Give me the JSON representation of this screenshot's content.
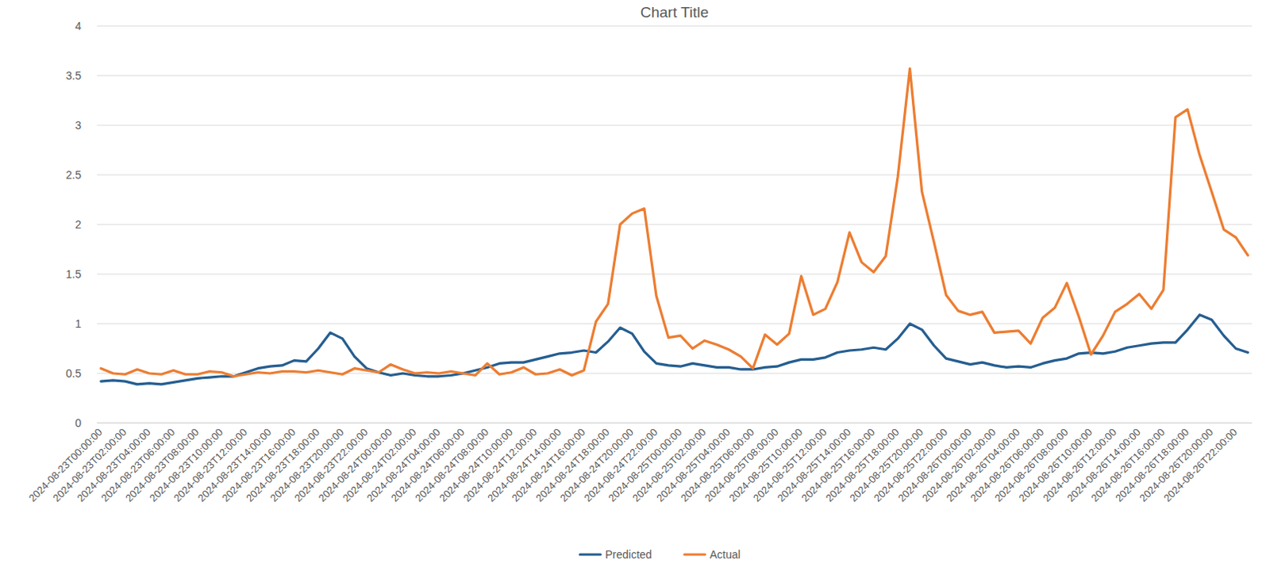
{
  "chart_data": {
    "type": "line",
    "title": "Chart Title",
    "categories": [
      "2024-08-23T00:00:00",
      null,
      "2024-08-23T02:00:00",
      null,
      "2024-08-23T04:00:00",
      null,
      "2024-08-23T06:00:00",
      null,
      "2024-08-23T08:00:00",
      null,
      "2024-08-23T10:00:00",
      null,
      "2024-08-23T12:00:00",
      null,
      "2024-08-23T14:00:00",
      null,
      "2024-08-23T16:00:00",
      null,
      "2024-08-23T18:00:00",
      null,
      "2024-08-23T20:00:00",
      null,
      "2024-08-23T22:00:00",
      null,
      "2024-08-24T00:00:00",
      null,
      "2024-08-24T02:00:00",
      null,
      "2024-08-24T04:00:00",
      null,
      "2024-08-24T06:00:00",
      null,
      "2024-08-24T08:00:00",
      null,
      "2024-08-24T10:00:00",
      null,
      "2024-08-24T12:00:00",
      null,
      "2024-08-24T14:00:00",
      null,
      "2024-08-24T16:00:00",
      null,
      "2024-08-24T18:00:00",
      null,
      "2024-08-24T20:00:00",
      null,
      "2024-08-24T22:00:00",
      null,
      "2024-08-25T00:00:00",
      null,
      "2024-08-25T02:00:00",
      null,
      "2024-08-25T04:00:00",
      null,
      "2024-08-25T06:00:00",
      null,
      "2024-08-25T08:00:00",
      null,
      "2024-08-25T10:00:00",
      null,
      "2024-08-25T12:00:00",
      null,
      "2024-08-25T14:00:00",
      null,
      "2024-08-25T16:00:00",
      null,
      "2024-08-25T18:00:00",
      null,
      "2024-08-25T20:00:00",
      null,
      "2024-08-25T22:00:00",
      null,
      "2024-08-26T00:00:00",
      null,
      "2024-08-26T02:00:00",
      null,
      "2024-08-26T04:00:00",
      null,
      "2024-08-26T06:00:00",
      null,
      "2024-08-26T08:00:00",
      null,
      "2024-08-26T10:00:00",
      null,
      "2024-08-26T12:00:00",
      null,
      "2024-08-26T14:00:00",
      null,
      "2024-08-26T16:00:00",
      null,
      "2024-08-26T18:00:00",
      null,
      "2024-08-26T20:00:00",
      null,
      "2024-08-26T22:00:00",
      null
    ],
    "series": [
      {
        "name": "Predicted",
        "color": "#255e91",
        "values": [
          0.42,
          0.43,
          0.42,
          0.39,
          0.4,
          0.39,
          0.41,
          0.43,
          0.45,
          0.46,
          0.47,
          0.47,
          0.51,
          0.55,
          0.57,
          0.58,
          0.63,
          0.62,
          0.75,
          0.91,
          0.85,
          0.67,
          0.55,
          0.51,
          0.48,
          0.5,
          0.48,
          0.47,
          0.47,
          0.48,
          0.5,
          0.53,
          0.56,
          0.6,
          0.61,
          0.61,
          0.64,
          0.67,
          0.7,
          0.71,
          0.73,
          0.71,
          0.82,
          0.96,
          0.9,
          0.72,
          0.6,
          0.58,
          0.57,
          0.6,
          0.58,
          0.56,
          0.56,
          0.54,
          0.54,
          0.56,
          0.57,
          0.61,
          0.64,
          0.64,
          0.66,
          0.71,
          0.73,
          0.74,
          0.76,
          0.74,
          0.85,
          1.0,
          0.94,
          0.78,
          0.65,
          0.62,
          0.59,
          0.61,
          0.58,
          0.56,
          0.57,
          0.56,
          0.6,
          0.63,
          0.65,
          0.7,
          0.71,
          0.7,
          0.72,
          0.76,
          0.78,
          0.8,
          0.81,
          0.81,
          0.94,
          1.09,
          1.04,
          0.88,
          0.75,
          0.71
        ]
      },
      {
        "name": "Actual",
        "color": "#ed7d31",
        "values": [
          0.55,
          0.5,
          0.49,
          0.54,
          0.5,
          0.49,
          0.53,
          0.49,
          0.49,
          0.52,
          0.51,
          0.47,
          0.49,
          0.51,
          0.5,
          0.52,
          0.52,
          0.51,
          0.53,
          0.51,
          0.49,
          0.55,
          0.53,
          0.51,
          0.59,
          0.54,
          0.5,
          0.51,
          0.5,
          0.52,
          0.5,
          0.48,
          0.6,
          0.49,
          0.51,
          0.56,
          0.49,
          0.5,
          0.54,
          0.48,
          0.53,
          1.02,
          1.2,
          2.0,
          2.11,
          2.16,
          1.28,
          0.86,
          0.88,
          0.75,
          0.83,
          0.79,
          0.74,
          0.67,
          0.55,
          0.89,
          0.79,
          0.9,
          1.48,
          1.09,
          1.15,
          1.42,
          1.92,
          1.62,
          1.52,
          1.68,
          2.48,
          3.57,
          2.33,
          1.82,
          1.29,
          1.13,
          1.09,
          1.12,
          0.91,
          0.92,
          0.93,
          0.8,
          1.06,
          1.16,
          1.41,
          1.07,
          0.69,
          0.88,
          1.12,
          1.2,
          1.3,
          1.15,
          1.34,
          3.08,
          3.16,
          2.7,
          2.33,
          1.95,
          1.87,
          1.69
        ]
      }
    ],
    "ylim": [
      0,
      4
    ],
    "yticks": [
      0,
      0.5,
      1,
      1.5,
      2,
      2.5,
      3,
      3.5,
      4
    ],
    "grid": true,
    "legend": "bottom"
  }
}
